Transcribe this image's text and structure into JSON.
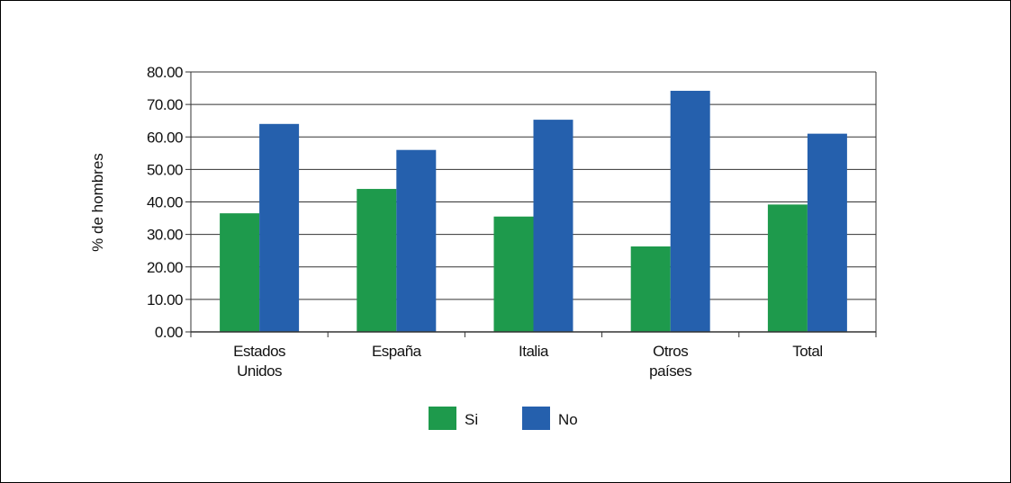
{
  "chart_data": {
    "type": "bar",
    "title": "",
    "xlabel": "",
    "ylabel": "% de hombres",
    "ylim": [
      0,
      80
    ],
    "yticks": [
      0,
      10,
      20,
      30,
      40,
      50,
      60,
      70,
      80
    ],
    "ytick_labels": [
      "0.00",
      "10.00",
      "20.00",
      "30.00",
      "40.00",
      "50.00",
      "60.00",
      "70.00",
      "80.00"
    ],
    "grid": true,
    "legend_position": "bottom",
    "categories": [
      [
        "Estados",
        "Unidos"
      ],
      [
        "España"
      ],
      [
        "Italia"
      ],
      [
        "Otros",
        "países"
      ],
      [
        "Total"
      ]
    ],
    "series": [
      {
        "name": "Si",
        "color": "#1e9a4c",
        "values": [
          36.5,
          44,
          35.5,
          26.3,
          39.2
        ]
      },
      {
        "name": "No",
        "color": "#2560ad",
        "values": [
          64,
          56,
          65.3,
          74.2,
          61
        ]
      }
    ]
  }
}
